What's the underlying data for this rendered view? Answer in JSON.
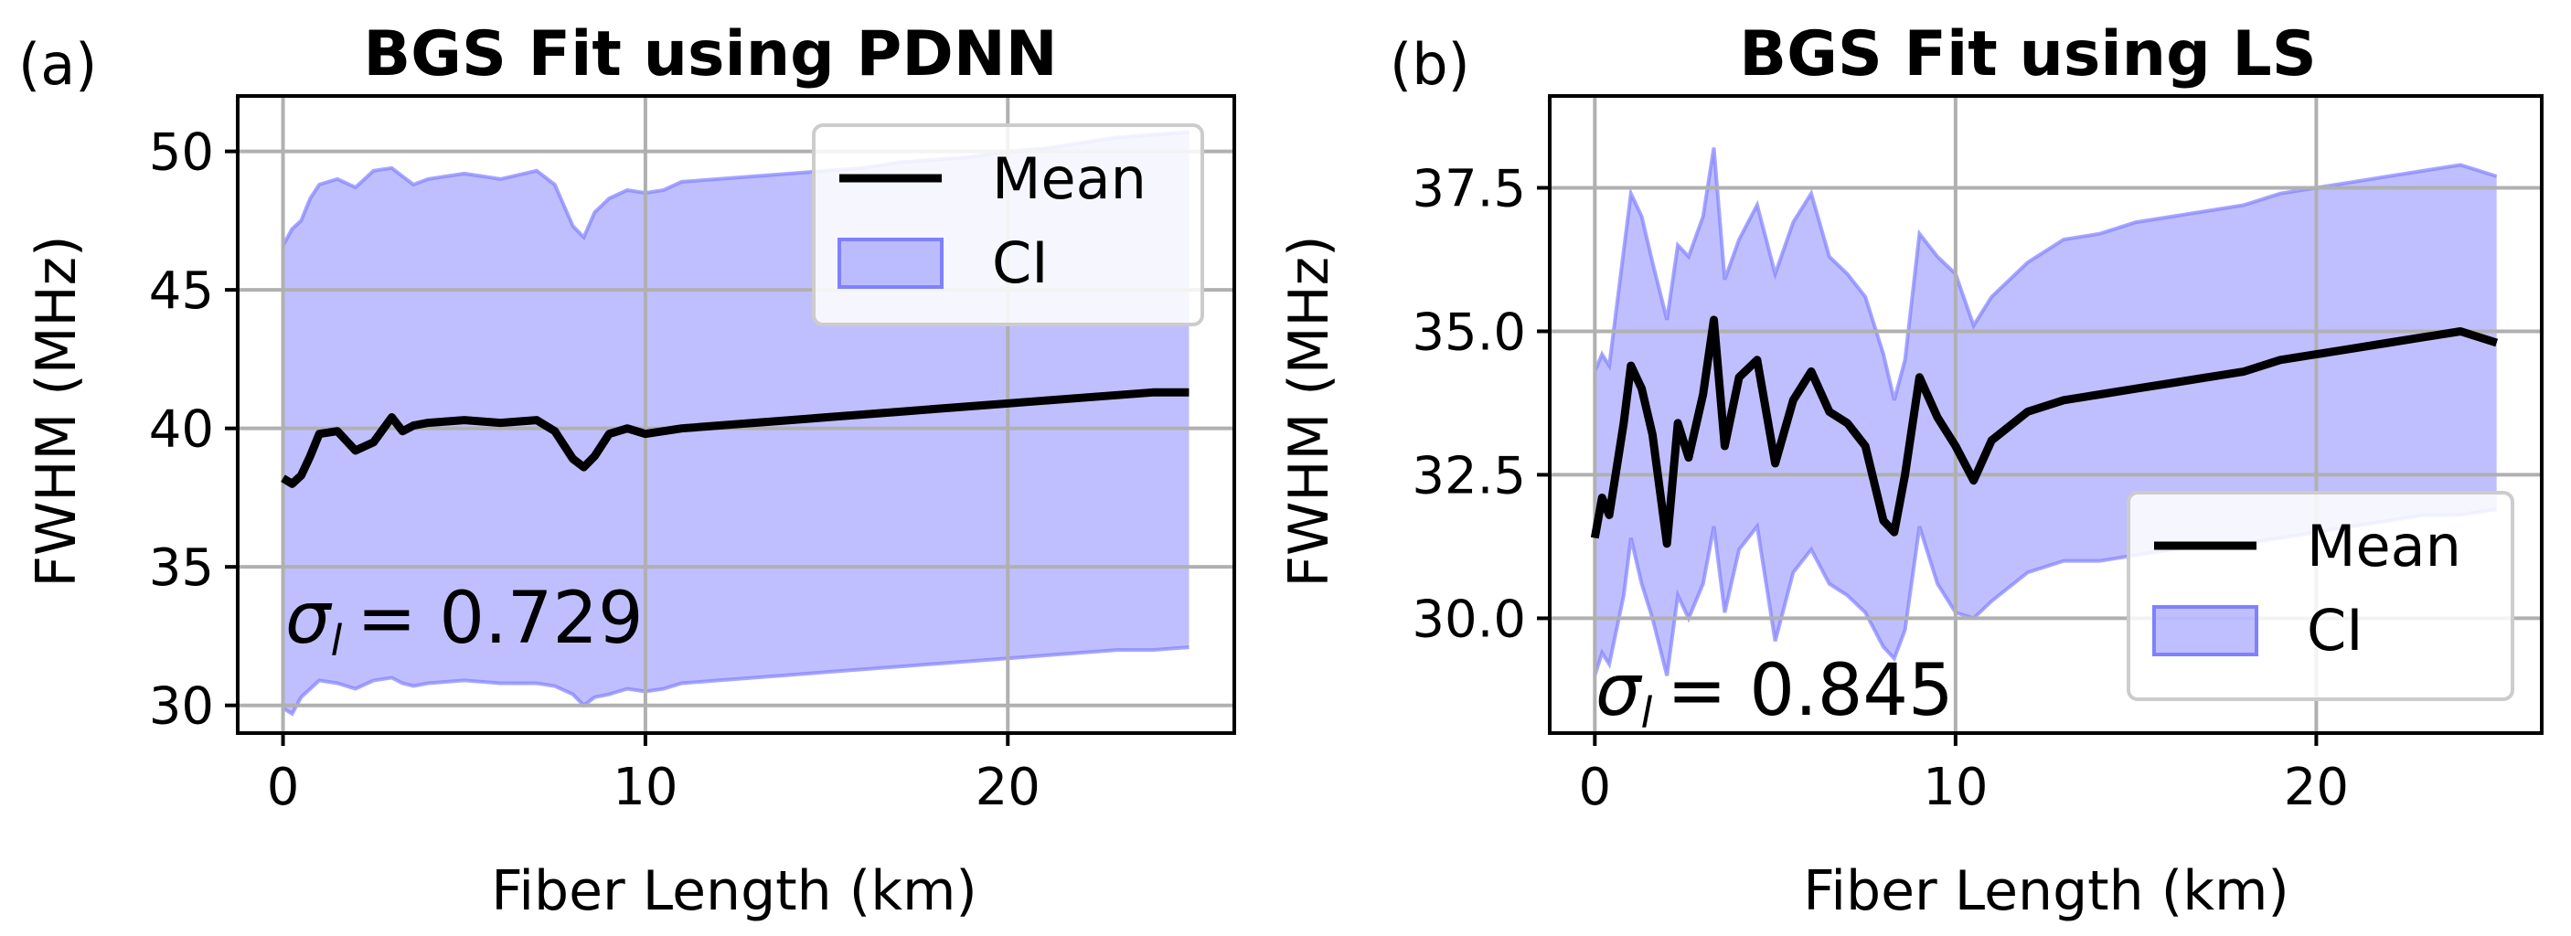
{
  "figure": {
    "panels": [
      "(a)",
      "(b)"
    ]
  },
  "colors": {
    "mean": "#000000",
    "ci_fill": "#8080ff",
    "ci_edge": "#8080ff",
    "grid": "#b0b0b0",
    "axes": "#000000",
    "legend_bg": "#ffffff"
  },
  "chart_data": [
    {
      "type": "line",
      "panel_label": "(a)",
      "title": "BGS Fit using PDNN",
      "xlabel": "Fiber Length (km)",
      "ylabel": "FWHM (MHz)",
      "xlim": [
        -1.25,
        26.25
      ],
      "ylim": [
        29,
        52
      ],
      "xticks": [
        0,
        10,
        20
      ],
      "yticks": [
        30,
        35,
        40,
        45,
        50
      ],
      "xtick_labels": [
        "0",
        "10",
        "20"
      ],
      "ytick_labels": [
        "30",
        "35",
        "40",
        "45",
        "50"
      ],
      "grid": true,
      "legend_loc": "upper right",
      "legend": {
        "mean": "Mean",
        "ci": "CI"
      },
      "annotation": {
        "text": "= 0.729",
        "symbol": "σ",
        "subscript": "l"
      },
      "x": [
        0,
        0.25,
        0.5,
        0.75,
        1.0,
        1.5,
        2.0,
        2.5,
        3.0,
        3.3,
        3.6,
        4.0,
        5.0,
        6.0,
        7.0,
        7.5,
        8.0,
        8.3,
        8.6,
        9.0,
        9.5,
        10.0,
        10.5,
        11.0,
        12.0,
        13.0,
        14.0,
        15.0,
        16.0,
        17.0,
        18.0,
        19.0,
        20.0,
        21.0,
        22.0,
        23.0,
        24.0,
        25.0
      ],
      "series": [
        {
          "name": "Mean",
          "values": [
            38.2,
            38.0,
            38.3,
            39.0,
            39.8,
            39.9,
            39.2,
            39.5,
            40.4,
            39.9,
            40.1,
            40.2,
            40.3,
            40.2,
            40.3,
            39.9,
            38.9,
            38.6,
            39.0,
            39.8,
            40.0,
            39.8,
            39.9,
            40.0,
            40.1,
            40.2,
            40.3,
            40.4,
            40.5,
            40.6,
            40.7,
            40.8,
            40.9,
            41.0,
            41.1,
            41.2,
            41.3,
            41.3
          ]
        },
        {
          "name": "CI upper",
          "values": [
            46.6,
            47.2,
            47.5,
            48.3,
            48.8,
            49.0,
            48.7,
            49.3,
            49.4,
            49.1,
            48.8,
            49.0,
            49.2,
            49.0,
            49.3,
            48.8,
            47.3,
            46.9,
            47.8,
            48.3,
            48.6,
            48.5,
            48.6,
            48.9,
            49.0,
            49.1,
            49.2,
            49.3,
            49.4,
            49.6,
            49.7,
            49.8,
            50.0,
            50.1,
            50.3,
            50.5,
            50.6,
            50.7
          ]
        },
        {
          "name": "CI lower",
          "values": [
            29.9,
            29.7,
            30.3,
            30.6,
            30.9,
            30.8,
            30.6,
            30.9,
            31.0,
            30.8,
            30.7,
            30.8,
            30.9,
            30.8,
            30.8,
            30.7,
            30.4,
            30.0,
            30.3,
            30.4,
            30.6,
            30.5,
            30.6,
            30.8,
            30.9,
            31.0,
            31.1,
            31.2,
            31.3,
            31.4,
            31.5,
            31.6,
            31.7,
            31.8,
            31.9,
            32.0,
            32.0,
            32.1
          ]
        }
      ]
    },
    {
      "type": "line",
      "panel_label": "(b)",
      "title": "BGS Fit using LS",
      "xlabel": "Fiber Length (km)",
      "ylabel": "FWHM (MHz)",
      "xlim": [
        -1.25,
        26.25
      ],
      "ylim": [
        28.0,
        39.1
      ],
      "xticks": [
        0,
        10,
        20
      ],
      "yticks": [
        30.0,
        32.5,
        35.0,
        37.5
      ],
      "xtick_labels": [
        "0",
        "10",
        "20"
      ],
      "ytick_labels": [
        "30.0",
        "32.5",
        "35.0",
        "37.5"
      ],
      "grid": true,
      "legend_loc": "lower right",
      "legend": {
        "mean": "Mean",
        "ci": "CI"
      },
      "annotation": {
        "text": "= 0.845",
        "symbol": "σ",
        "subscript": "l"
      },
      "x": [
        0,
        0.2,
        0.4,
        0.6,
        0.8,
        1.0,
        1.3,
        1.6,
        2.0,
        2.3,
        2.6,
        3.0,
        3.3,
        3.6,
        4.0,
        4.5,
        5.0,
        5.5,
        6.0,
        6.5,
        7.0,
        7.5,
        8.0,
        8.3,
        8.6,
        9.0,
        9.5,
        10.0,
        10.5,
        11.0,
        12.0,
        13.0,
        14.0,
        15.0,
        16.0,
        17.0,
        18.0,
        19.0,
        20.0,
        21.0,
        22.0,
        23.0,
        24.0,
        25.0
      ],
      "series": [
        {
          "name": "Mean",
          "values": [
            31.4,
            32.1,
            31.8,
            32.6,
            33.4,
            34.4,
            34.0,
            33.2,
            31.3,
            33.4,
            32.8,
            33.9,
            35.2,
            33.0,
            34.2,
            34.5,
            32.7,
            33.8,
            34.3,
            33.6,
            33.4,
            33.0,
            31.7,
            31.5,
            32.5,
            34.2,
            33.5,
            33.0,
            32.4,
            33.1,
            33.6,
            33.8,
            33.9,
            34.0,
            34.1,
            34.2,
            34.3,
            34.5,
            34.6,
            34.7,
            34.8,
            34.9,
            35.0,
            34.8
          ]
        },
        {
          "name": "CI upper",
          "values": [
            34.3,
            34.6,
            34.4,
            35.4,
            36.4,
            37.4,
            37.0,
            36.2,
            35.2,
            36.5,
            36.3,
            37.0,
            38.2,
            35.9,
            36.6,
            37.2,
            36.0,
            36.9,
            37.4,
            36.3,
            36.0,
            35.6,
            34.6,
            33.8,
            34.5,
            36.7,
            36.3,
            36.0,
            35.1,
            35.6,
            36.2,
            36.6,
            36.7,
            36.9,
            37.0,
            37.1,
            37.2,
            37.4,
            37.5,
            37.6,
            37.7,
            37.8,
            37.9,
            37.7
          ]
        },
        {
          "name": "CI lower",
          "values": [
            29.0,
            29.4,
            29.2,
            29.8,
            30.4,
            31.4,
            30.6,
            30.0,
            29.0,
            30.4,
            30.0,
            30.6,
            31.6,
            30.1,
            31.2,
            31.6,
            29.6,
            30.8,
            31.2,
            30.6,
            30.4,
            30.1,
            29.5,
            29.3,
            29.8,
            31.6,
            30.6,
            30.1,
            30.0,
            30.3,
            30.8,
            31.0,
            31.0,
            31.1,
            31.2,
            31.3,
            31.3,
            31.4,
            31.5,
            31.6,
            31.7,
            31.8,
            31.8,
            31.9
          ]
        }
      ]
    }
  ]
}
